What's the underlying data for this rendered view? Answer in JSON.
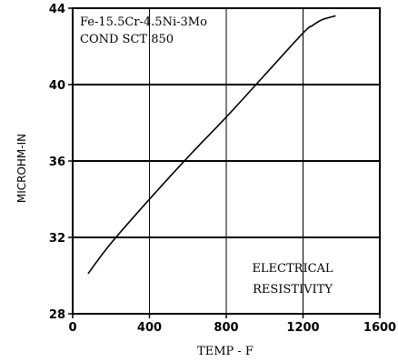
{
  "chart_data": {
    "type": "line",
    "xlabel": "TEMP - F",
    "ylabel": "MICROHM-IN",
    "xlim": [
      0,
      1600
    ],
    "ylim": [
      28,
      44
    ],
    "xticks": [
      0,
      400,
      800,
      1200,
      1600
    ],
    "yticks": [
      28,
      32,
      36,
      40,
      44
    ],
    "grid": true,
    "annotations": {
      "material": "Fe-15.5Cr-4.5Ni-3Mo",
      "condition": "COND SCT 850",
      "property_line1": "ELECTRICAL",
      "property_line2": "RESISTIVITY"
    },
    "series": [
      {
        "x": [
          80,
          200,
          400,
          600,
          800,
          1000,
          1200,
          1250,
          1300,
          1370
        ],
        "y": [
          30.1,
          31.7,
          34.0,
          36.2,
          38.3,
          40.5,
          42.7,
          43.1,
          43.4,
          43.6
        ]
      }
    ]
  }
}
